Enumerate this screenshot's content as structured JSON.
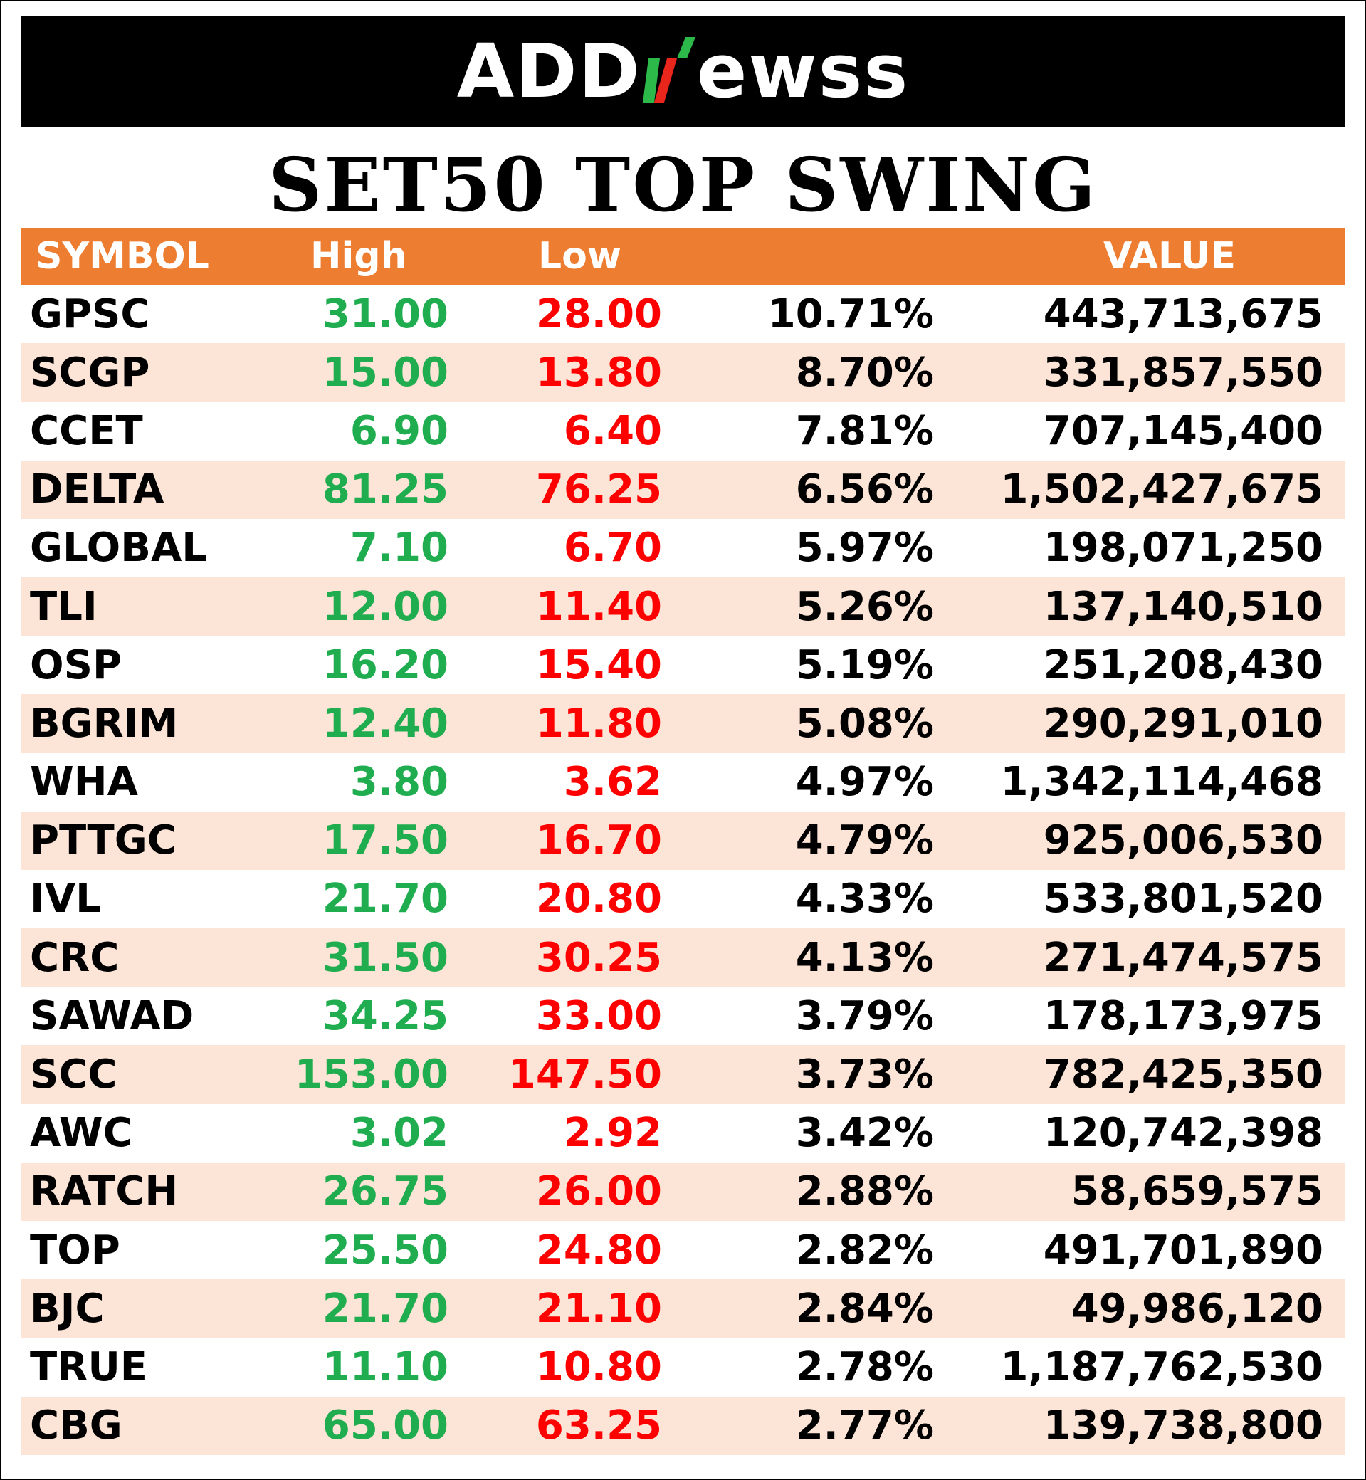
{
  "logo": {
    "left_text": "ADD",
    "right_text": "ewss",
    "accent_colors": [
      "#2db84a",
      "#e8261c"
    ]
  },
  "title": "SET50 TOP SWING",
  "colors": {
    "header_bg": "#ed7d31",
    "stripe_bg": "#fce4d6",
    "high": "#1fad4f",
    "low": "#ff0000"
  },
  "table": {
    "headers": {
      "symbol": "SYMBOL",
      "high": "High",
      "low": "Low",
      "change": "",
      "value": "VALUE"
    },
    "rows": [
      {
        "symbol": "GPSC",
        "high": "31.00",
        "low": "28.00",
        "change": "10.71%",
        "value": "443,713,675"
      },
      {
        "symbol": "SCGP",
        "high": "15.00",
        "low": "13.80",
        "change": "8.70%",
        "value": "331,857,550"
      },
      {
        "symbol": "CCET",
        "high": "6.90",
        "low": "6.40",
        "change": "7.81%",
        "value": "707,145,400"
      },
      {
        "symbol": "DELTA",
        "high": "81.25",
        "low": "76.25",
        "change": "6.56%",
        "value": "1,502,427,675"
      },
      {
        "symbol": "GLOBAL",
        "high": "7.10",
        "low": "6.70",
        "change": "5.97%",
        "value": "198,071,250"
      },
      {
        "symbol": "TLI",
        "high": "12.00",
        "low": "11.40",
        "change": "5.26%",
        "value": "137,140,510"
      },
      {
        "symbol": "OSP",
        "high": "16.20",
        "low": "15.40",
        "change": "5.19%",
        "value": "251,208,430"
      },
      {
        "symbol": "BGRIM",
        "high": "12.40",
        "low": "11.80",
        "change": "5.08%",
        "value": "290,291,010"
      },
      {
        "symbol": "WHA",
        "high": "3.80",
        "low": "3.62",
        "change": "4.97%",
        "value": "1,342,114,468"
      },
      {
        "symbol": "PTTGC",
        "high": "17.50",
        "low": "16.70",
        "change": "4.79%",
        "value": "925,006,530"
      },
      {
        "symbol": "IVL",
        "high": "21.70",
        "low": "20.80",
        "change": "4.33%",
        "value": "533,801,520"
      },
      {
        "symbol": "CRC",
        "high": "31.50",
        "low": "30.25",
        "change": "4.13%",
        "value": "271,474,575"
      },
      {
        "symbol": "SAWAD",
        "high": "34.25",
        "low": "33.00",
        "change": "3.79%",
        "value": "178,173,975"
      },
      {
        "symbol": "SCC",
        "high": "153.00",
        "low": "147.50",
        "change": "3.73%",
        "value": "782,425,350"
      },
      {
        "symbol": "AWC",
        "high": "3.02",
        "low": "2.92",
        "change": "3.42%",
        "value": "120,742,398"
      },
      {
        "symbol": "RATCH",
        "high": "26.75",
        "low": "26.00",
        "change": "2.88%",
        "value": "58,659,575"
      },
      {
        "symbol": "TOP",
        "high": "25.50",
        "low": "24.80",
        "change": "2.82%",
        "value": "491,701,890"
      },
      {
        "symbol": "BJC",
        "high": "21.70",
        "low": "21.10",
        "change": "2.84%",
        "value": "49,986,120"
      },
      {
        "symbol": "TRUE",
        "high": "11.10",
        "low": "10.80",
        "change": "2.78%",
        "value": "1,187,762,530"
      },
      {
        "symbol": "CBG",
        "high": "65.00",
        "low": "63.25",
        "change": "2.77%",
        "value": "139,738,800"
      }
    ]
  }
}
